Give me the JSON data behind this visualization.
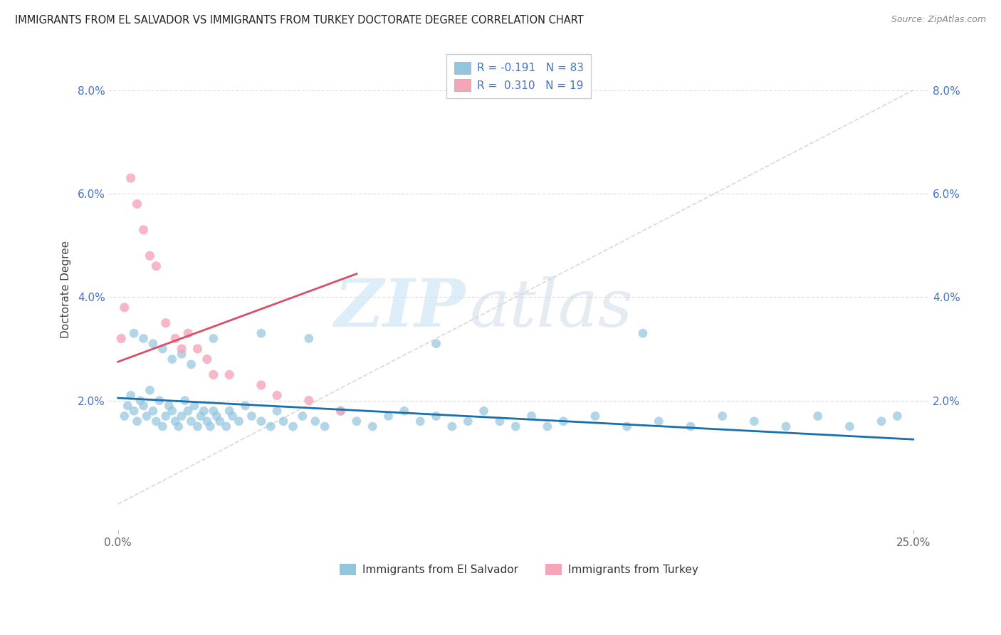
{
  "title": "IMMIGRANTS FROM EL SALVADOR VS IMMIGRANTS FROM TURKEY DOCTORATE DEGREE CORRELATION CHART",
  "source": "Source: ZipAtlas.com",
  "ylabel": "Doctorate Degree",
  "xlim": [
    -0.3,
    25.5
  ],
  "ylim": [
    -0.5,
    8.8
  ],
  "ytick_vals": [
    0.0,
    2.0,
    4.0,
    6.0,
    8.0
  ],
  "ytick_labels": [
    "",
    "2.0%",
    "4.0%",
    "6.0%",
    "8.0%"
  ],
  "xtick_vals": [
    0.0,
    25.0
  ],
  "xtick_labels": [
    "0.0%",
    "25.0%"
  ],
  "color_salvador": "#92c5de",
  "color_turkey": "#f4a6b8",
  "color_line_salvador": "#1a6faf",
  "color_line_turkey": "#d94f6a",
  "color_diagonal": "#c8c8c8",
  "color_grid": "#dddddd",
  "color_tick_blue": "#4472c4",
  "color_title": "#222222",
  "color_source": "#888888",
  "background_color": "#ffffff",
  "sal_x": [
    0.2,
    0.3,
    0.4,
    0.5,
    0.6,
    0.7,
    0.8,
    0.9,
    1.0,
    1.1,
    1.2,
    1.3,
    1.4,
    1.5,
    1.6,
    1.7,
    1.8,
    1.9,
    2.0,
    2.1,
    2.2,
    2.3,
    2.4,
    2.5,
    2.6,
    2.7,
    2.8,
    2.9,
    3.0,
    3.1,
    3.2,
    3.4,
    3.5,
    3.6,
    3.8,
    4.0,
    4.2,
    4.5,
    4.8,
    5.0,
    5.2,
    5.5,
    5.8,
    6.2,
    6.5,
    7.0,
    7.5,
    8.0,
    8.5,
    9.0,
    9.5,
    10.0,
    10.5,
    11.0,
    11.5,
    12.0,
    12.5,
    13.0,
    13.5,
    14.0,
    15.0,
    16.0,
    17.0,
    18.0,
    19.0,
    20.0,
    21.0,
    22.0,
    23.0,
    24.0,
    24.5,
    0.5,
    0.8,
    1.1,
    1.4,
    1.7,
    2.0,
    2.3,
    3.0,
    4.5,
    6.0,
    10.0,
    16.5
  ],
  "sal_y": [
    1.7,
    1.9,
    2.1,
    1.8,
    1.6,
    2.0,
    1.9,
    1.7,
    2.2,
    1.8,
    1.6,
    2.0,
    1.5,
    1.7,
    1.9,
    1.8,
    1.6,
    1.5,
    1.7,
    2.0,
    1.8,
    1.6,
    1.9,
    1.5,
    1.7,
    1.8,
    1.6,
    1.5,
    1.8,
    1.7,
    1.6,
    1.5,
    1.8,
    1.7,
    1.6,
    1.9,
    1.7,
    1.6,
    1.5,
    1.8,
    1.6,
    1.5,
    1.7,
    1.6,
    1.5,
    1.8,
    1.6,
    1.5,
    1.7,
    1.8,
    1.6,
    1.7,
    1.5,
    1.6,
    1.8,
    1.6,
    1.5,
    1.7,
    1.5,
    1.6,
    1.7,
    1.5,
    1.6,
    1.5,
    1.7,
    1.6,
    1.5,
    1.7,
    1.5,
    1.6,
    1.7,
    3.3,
    3.2,
    3.1,
    3.0,
    2.8,
    2.9,
    2.7,
    3.2,
    3.3,
    3.2,
    3.1,
    3.3
  ],
  "tur_x": [
    0.1,
    0.2,
    0.4,
    0.6,
    0.8,
    1.0,
    1.2,
    1.5,
    1.8,
    2.0,
    2.2,
    2.5,
    2.8,
    3.0,
    3.5,
    4.5,
    5.0,
    6.0,
    7.0
  ],
  "tur_y": [
    3.2,
    3.8,
    6.3,
    5.8,
    5.3,
    4.8,
    4.6,
    3.5,
    3.2,
    3.0,
    3.3,
    3.0,
    2.8,
    2.5,
    2.5,
    2.3,
    2.1,
    2.0,
    1.8
  ],
  "sal_line_x": [
    0.0,
    25.0
  ],
  "sal_line_y": [
    2.05,
    1.25
  ],
  "tur_line_x": [
    0.0,
    7.5
  ],
  "tur_line_y": [
    2.75,
    4.45
  ]
}
